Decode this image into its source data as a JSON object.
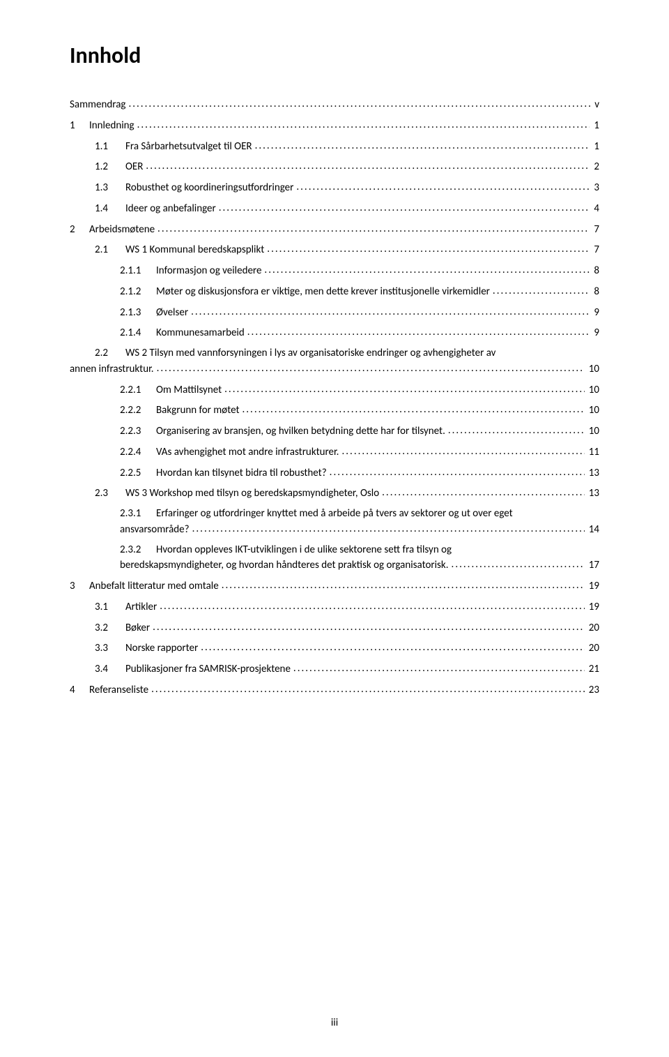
{
  "title": "Innhold",
  "page_number": "iii",
  "colors": {
    "text": "#000000",
    "background": "#ffffff"
  },
  "typography": {
    "title_fontsize": 32,
    "body_fontsize": 15,
    "font_family": "Calibri"
  },
  "toc": [
    {
      "indent": 0,
      "num": "",
      "text": "Sammendrag",
      "page": "v"
    },
    {
      "indent": 0,
      "num": "1",
      "text": "Innledning",
      "page": "1"
    },
    {
      "indent": 1,
      "num": "1.1",
      "text": "Fra Sårbarhetsutvalget til OER",
      "page": "1"
    },
    {
      "indent": 1,
      "num": "1.2",
      "text": "OER",
      "page": "2"
    },
    {
      "indent": 1,
      "num": "1.3",
      "text": "Robusthet og koordineringsutfordringer",
      "page": "3"
    },
    {
      "indent": 1,
      "num": "1.4",
      "text": "Ideer og anbefalinger",
      "page": "4"
    },
    {
      "indent": 0,
      "num": "2",
      "text": "Arbeidsmøtene",
      "page": "7"
    },
    {
      "indent": 1,
      "num": "2.1",
      "text": "WS 1 Kommunal beredskapsplikt",
      "page": "7"
    },
    {
      "indent": 2,
      "num": "2.1.1",
      "text": "Informasjon og veiledere",
      "page": "8"
    },
    {
      "indent": 2,
      "num": "2.1.2",
      "text": "Møter og diskusjonsfora er viktige, men dette krever institusjonelle virkemidler",
      "page": "8"
    },
    {
      "indent": 2,
      "num": "2.1.3",
      "text": "Øvelser",
      "page": "9"
    },
    {
      "indent": 2,
      "num": "2.1.4",
      "text": "Kommunesamarbeid",
      "page": "9"
    },
    {
      "indent": 1,
      "num": "2.2",
      "text_lines": [
        "WS 2 Tilsyn med vannforsyningen i lys av organisatoriske endringer og avhengigheter av",
        "annen infrastruktur."
      ],
      "page": "10"
    },
    {
      "indent": 2,
      "num": "2.2.1",
      "text": "Om Mattilsynet",
      "page": "10"
    },
    {
      "indent": 2,
      "num": "2.2.2",
      "text": "Bakgrunn for møtet",
      "page": "10"
    },
    {
      "indent": 2,
      "num": "2.2.3",
      "text": "Organisering av bransjen, og hvilken betydning dette har for tilsynet.",
      "page": "10"
    },
    {
      "indent": 2,
      "num": "2.2.4",
      "text": "VAs avhengighet mot andre infrastrukturer.",
      "page": "11"
    },
    {
      "indent": 2,
      "num": "2.2.5",
      "text": "Hvordan kan tilsynet bidra til robusthet?",
      "page": "13"
    },
    {
      "indent": 1,
      "num": "2.3",
      "text": "WS 3 Workshop med tilsyn og beredskapsmyndigheter, Oslo",
      "page": "13"
    },
    {
      "indent": 2,
      "num": "2.3.1",
      "text_lines": [
        "Erfaringer og utfordringer knyttet med å arbeide på tvers av sektorer og ut over eget",
        "ansvarsområde?"
      ],
      "page": "14"
    },
    {
      "indent": 2,
      "num": "2.3.2",
      "text_lines": [
        "Hvordan oppleves IKT-utviklingen i de ulike sektorene sett fra tilsyn og",
        "beredskapsmyndigheter, og hvordan håndteres det praktisk og organisatorisk."
      ],
      "page": "17"
    },
    {
      "indent": 0,
      "num": "3",
      "text": "Anbefalt litteratur med omtale",
      "page": "19"
    },
    {
      "indent": 1,
      "num": "3.1",
      "text": "Artikler",
      "page": "19"
    },
    {
      "indent": 1,
      "num": "3.2",
      "text": "Bøker",
      "page": "20"
    },
    {
      "indent": 1,
      "num": "3.3",
      "text": "Norske rapporter",
      "page": "20"
    },
    {
      "indent": 1,
      "num": "3.4",
      "text": "Publikasjoner fra SAMRISK-prosjektene",
      "page": "21"
    },
    {
      "indent": 0,
      "num": "4",
      "text": "Referanseliste",
      "page": "23"
    }
  ]
}
